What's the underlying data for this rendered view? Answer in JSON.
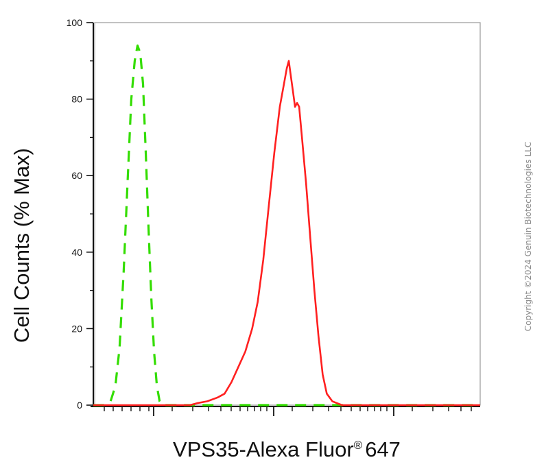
{
  "chart_data": {
    "type": "line",
    "title": "",
    "xlabel": "VPS35-Alexa Fluor",
    "xlabel_mark": "®",
    "xlabel_suffix": "647",
    "ylabel": "Cell Counts (% Max)",
    "x_scale": "log",
    "x_tick_labels": [],
    "ylim": [
      0,
      100
    ],
    "yticks": [
      0,
      20,
      40,
      60,
      80,
      100
    ],
    "grid": false,
    "legend": "none",
    "series": [
      {
        "color": "#33dd00",
        "style": "dashed",
        "points": [
          [
            0,
            0
          ],
          [
            15,
            0
          ],
          [
            25,
            1
          ],
          [
            32,
            5
          ],
          [
            38,
            15
          ],
          [
            44,
            35
          ],
          [
            50,
            60
          ],
          [
            55,
            80
          ],
          [
            60,
            90
          ],
          [
            64,
            94
          ],
          [
            68,
            92
          ],
          [
            72,
            84
          ],
          [
            76,
            66
          ],
          [
            80,
            46
          ],
          [
            84,
            28
          ],
          [
            88,
            14
          ],
          [
            92,
            5
          ],
          [
            96,
            1
          ],
          [
            100,
            0
          ],
          [
            560,
            0
          ]
        ]
      },
      {
        "color": "#ff2020",
        "style": "solid",
        "points": [
          [
            0,
            0
          ],
          [
            140,
            0
          ],
          [
            150,
            0.5
          ],
          [
            165,
            1
          ],
          [
            180,
            2
          ],
          [
            190,
            3
          ],
          [
            200,
            6
          ],
          [
            210,
            10
          ],
          [
            220,
            14
          ],
          [
            230,
            20
          ],
          [
            238,
            27
          ],
          [
            246,
            38
          ],
          [
            254,
            52
          ],
          [
            262,
            66
          ],
          [
            270,
            78
          ],
          [
            276,
            84
          ],
          [
            280,
            88
          ],
          [
            283,
            90
          ],
          [
            286,
            86
          ],
          [
            289,
            82
          ],
          [
            292,
            78
          ],
          [
            295,
            79
          ],
          [
            298,
            78
          ],
          [
            302,
            70
          ],
          [
            308,
            58
          ],
          [
            314,
            44
          ],
          [
            320,
            30
          ],
          [
            326,
            18
          ],
          [
            332,
            8
          ],
          [
            338,
            3
          ],
          [
            346,
            1
          ],
          [
            360,
            0
          ],
          [
            560,
            0
          ]
        ]
      }
    ]
  },
  "watermark": "Copyright ©2024 Genuin Biotechnologies LLC"
}
